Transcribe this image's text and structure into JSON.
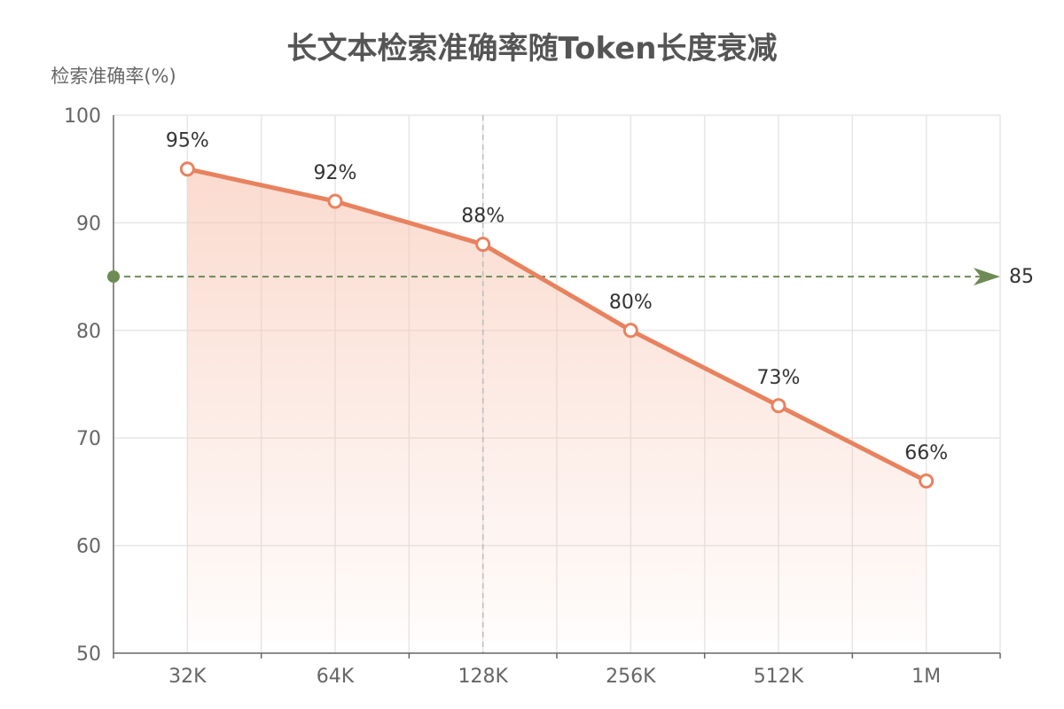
{
  "chart_data": {
    "type": "area",
    "title": "长文本检索准确率随Token长度衰减",
    "ylabel": "检索准确率(%)",
    "xlabel": "",
    "categories": [
      "32K",
      "64K",
      "128K",
      "256K",
      "512K",
      "1M"
    ],
    "series": [
      {
        "values": [
          95,
          92,
          88,
          80,
          73,
          66
        ],
        "data_labels": [
          "95%",
          "92%",
          "88%",
          "80%",
          "73%",
          "66%"
        ]
      }
    ],
    "ylim": [
      50,
      100
    ],
    "yticks": [
      50,
      60,
      70,
      80,
      90,
      100
    ],
    "ytick_labels": [
      "50",
      "60",
      "70",
      "80",
      "90",
      "100"
    ],
    "grid": true,
    "reference_line": {
      "value": 85,
      "label": "85"
    },
    "highlight_category": "128K",
    "colors": {
      "line": "#E8825E",
      "area_top": "#F8C7B5",
      "marker_fill": "#ffffff",
      "reference": "#6E8B55",
      "grid": "#E6E6E6",
      "axis": "#666666",
      "highlight_line": "#BBBBBB"
    }
  }
}
